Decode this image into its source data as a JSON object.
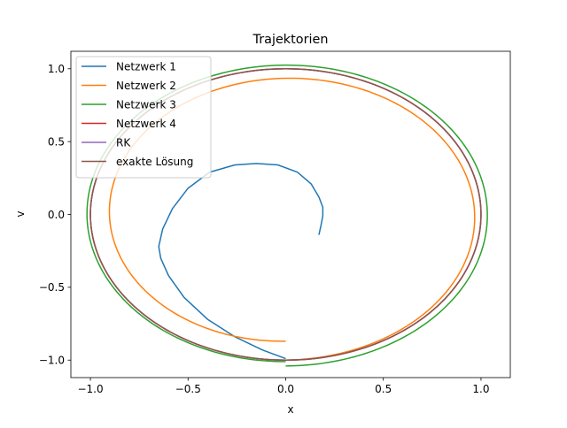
{
  "chart_data": {
    "type": "line",
    "title": "Trajektorien",
    "xlabel": "x",
    "ylabel": "v",
    "xlim": [
      -1.1,
      1.15
    ],
    "ylim": [
      -1.12,
      1.12
    ],
    "x_ticks": [
      -1.0,
      -0.5,
      0.0,
      0.5,
      1.0
    ],
    "x_tick_labels": [
      "−1.0",
      "−0.5",
      "0.0",
      "0.5",
      "1.0"
    ],
    "y_ticks": [
      -1.0,
      -0.5,
      0.0,
      0.5,
      1.0
    ],
    "y_tick_labels": [
      "−1.0",
      "−0.5",
      "0.0",
      "0.5",
      "1.0"
    ],
    "grid": false,
    "legend_position": "top-left",
    "series": [
      {
        "name": "Netzwerk 1",
        "color": "#1f77b4",
        "x": [
          0.0,
          -0.12,
          -0.26,
          -0.4,
          -0.52,
          -0.6,
          -0.64,
          -0.65,
          -0.63,
          -0.58,
          -0.5,
          -0.39,
          -0.26,
          -0.15,
          -0.04,
          0.06,
          0.13,
          0.17,
          0.19,
          0.19,
          0.18,
          0.17
        ],
        "y": [
          -0.99,
          -0.93,
          -0.84,
          -0.72,
          -0.57,
          -0.42,
          -0.3,
          -0.22,
          -0.1,
          0.04,
          0.18,
          0.29,
          0.34,
          0.35,
          0.34,
          0.29,
          0.21,
          0.12,
          0.05,
          -0.01,
          -0.08,
          -0.14
        ]
      },
      {
        "name": "Netzwerk 2",
        "color": "#ff7f0e",
        "spiral": {
          "r_start": 0.87,
          "r_end": 1.0,
          "start_deg": -90,
          "sweep_deg": -360
        }
      },
      {
        "name": "Netzwerk 3",
        "color": "#2ca02c",
        "spiral": {
          "r_start": 1.01,
          "r_end": 1.04,
          "start_deg": -90,
          "sweep_deg": -360
        }
      },
      {
        "name": "Netzwerk 4",
        "color": "#d62728",
        "spiral": {
          "r_start": 1.0,
          "r_end": 1.0,
          "start_deg": -90,
          "sweep_deg": -360
        }
      },
      {
        "name": "RK",
        "color": "#9467bd",
        "spiral": {
          "r_start": 1.0,
          "r_end": 1.0,
          "start_deg": -90,
          "sweep_deg": -360
        }
      },
      {
        "name": "exakte Lösung",
        "color": "#8c564b",
        "spiral": {
          "r_start": 1.0,
          "r_end": 1.0,
          "start_deg": -90,
          "sweep_deg": -360
        }
      }
    ]
  }
}
